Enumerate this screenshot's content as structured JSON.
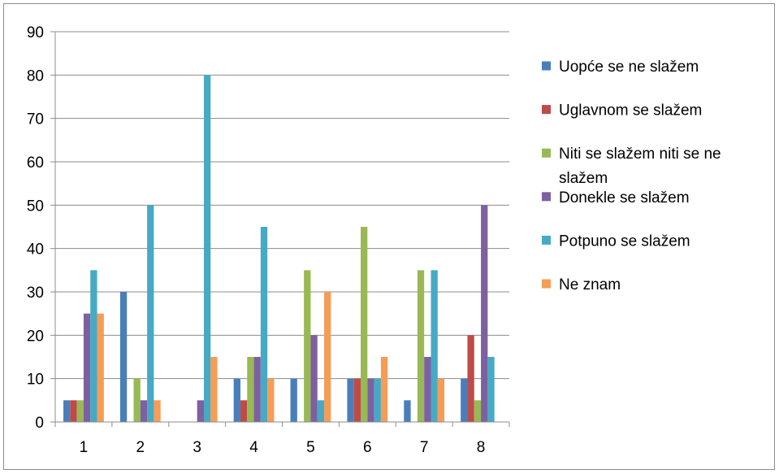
{
  "chart_data": {
    "type": "bar",
    "title": "",
    "xlabel": "",
    "ylabel": "",
    "ylim": [
      0,
      90
    ],
    "yticks": [
      0,
      10,
      20,
      30,
      40,
      50,
      60,
      70,
      80,
      90
    ],
    "grid": true,
    "legend_position": "right",
    "categories": [
      "1",
      "2",
      "3",
      "4",
      "5",
      "6",
      "7",
      "8"
    ],
    "series": [
      {
        "name": "Uopće se ne slažem",
        "color": "#4a7ebb",
        "values": [
          5,
          30,
          0,
          10,
          10,
          10,
          5,
          10
        ]
      },
      {
        "name": "Uglavnom se slažem",
        "color": "#be4b48",
        "values": [
          5,
          0,
          0,
          5,
          0,
          10,
          0,
          20
        ]
      },
      {
        "name": "Niti se slažem niti se ne slažem",
        "legend_lines": [
          "Niti se slažem niti se ne",
          "slažem"
        ],
        "color": "#98b954",
        "values": [
          5,
          10,
          0,
          15,
          35,
          45,
          35,
          5
        ]
      },
      {
        "name": "Donekle se slažem",
        "color": "#7d60a0",
        "values": [
          25,
          5,
          5,
          15,
          20,
          10,
          15,
          50
        ]
      },
      {
        "name": "Potpuno se slažem",
        "color": "#46aac5",
        "values": [
          35,
          50,
          80,
          45,
          5,
          10,
          35,
          15
        ]
      },
      {
        "name": "Ne znam",
        "color": "#f59d56",
        "values": [
          25,
          5,
          15,
          10,
          30,
          15,
          10,
          0
        ]
      }
    ]
  }
}
